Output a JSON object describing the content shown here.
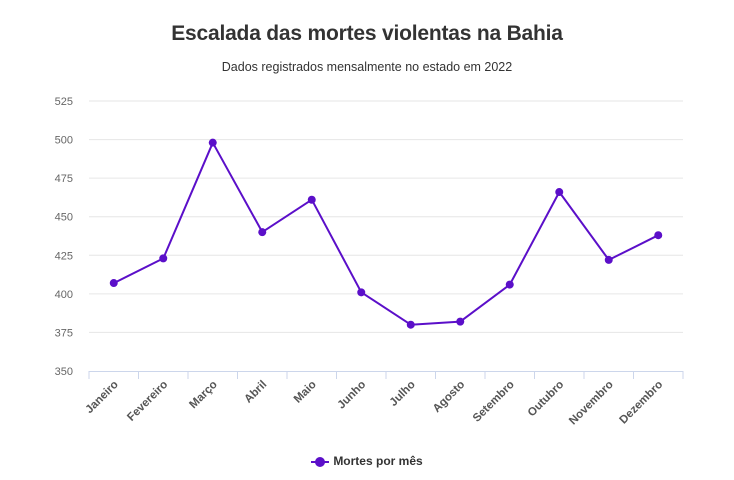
{
  "chart_data": {
    "type": "line",
    "title": "Escalada das mortes violentas na Bahia",
    "subtitle": "Dados registrados mensalmente no estado em 2022",
    "xlabel": "",
    "ylabel": "",
    "categories": [
      "Janeiro",
      "Fevereiro",
      "Março",
      "Abril",
      "Maio",
      "Junho",
      "Julho",
      "Agosto",
      "Setembro",
      "Outubro",
      "Novembro",
      "Dezembro"
    ],
    "series": [
      {
        "name": "Mortes por mês",
        "color": "#5b0fc9",
        "values": [
          407,
          423,
          498,
          440,
          461,
          401,
          380,
          382,
          406,
          466,
          422,
          438
        ]
      }
    ],
    "ylim": [
      350,
      525
    ],
    "yticks": [
      350,
      375,
      400,
      425,
      450,
      475,
      500,
      525
    ],
    "grid": true,
    "legend": "bottom-center"
  }
}
